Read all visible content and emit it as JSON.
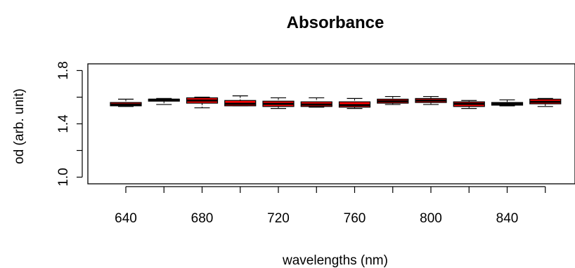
{
  "chart_data": {
    "type": "box",
    "title": "Absorbance",
    "xlabel": "wavelengths (nm)",
    "ylabel": "od (arb. unit)",
    "ylim": [
      0.95,
      1.85
    ],
    "y_ticks": [
      1.0,
      1.2,
      1.4,
      1.6,
      1.8
    ],
    "y_tick_labels": [
      "1.0",
      "1.4",
      "1.8"
    ],
    "x_tick_labels": [
      "640",
      "680",
      "720",
      "760",
      "800",
      "840"
    ],
    "box_fill_color": "#ff0000",
    "categories": [
      "640",
      "660",
      "680",
      "700",
      "720",
      "740",
      "760",
      "780",
      "800",
      "820",
      "840",
      "860"
    ],
    "boxes": [
      {
        "x": "640",
        "min": 1.53,
        "q1": 1.535,
        "median": 1.545,
        "q3": 1.56,
        "max": 1.585
      },
      {
        "x": "660",
        "min": 1.545,
        "q1": 1.57,
        "median": 1.58,
        "q3": 1.585,
        "max": 1.59
      },
      {
        "x": "680",
        "min": 1.52,
        "q1": 1.555,
        "median": 1.575,
        "q3": 1.595,
        "max": 1.6
      },
      {
        "x": "700",
        "min": 1.535,
        "q1": 1.535,
        "median": 1.55,
        "q3": 1.575,
        "max": 1.61
      },
      {
        "x": "720",
        "min": 1.515,
        "q1": 1.53,
        "median": 1.55,
        "q3": 1.57,
        "max": 1.595
      },
      {
        "x": "740",
        "min": 1.525,
        "q1": 1.53,
        "median": 1.545,
        "q3": 1.565,
        "max": 1.595
      },
      {
        "x": "760",
        "min": 1.515,
        "q1": 1.525,
        "median": 1.54,
        "q3": 1.565,
        "max": 1.59
      },
      {
        "x": "780",
        "min": 1.545,
        "q1": 1.555,
        "median": 1.57,
        "q3": 1.585,
        "max": 1.605
      },
      {
        "x": "800",
        "min": 1.545,
        "q1": 1.56,
        "median": 1.575,
        "q3": 1.59,
        "max": 1.605
      },
      {
        "x": "820",
        "min": 1.515,
        "q1": 1.53,
        "median": 1.55,
        "q3": 1.565,
        "max": 1.575
      },
      {
        "x": "840",
        "min": 1.535,
        "q1": 1.54,
        "median": 1.55,
        "q3": 1.56,
        "max": 1.58
      },
      {
        "x": "860",
        "min": 1.53,
        "q1": 1.55,
        "median": 1.565,
        "q3": 1.585,
        "max": 1.59
      }
    ]
  }
}
